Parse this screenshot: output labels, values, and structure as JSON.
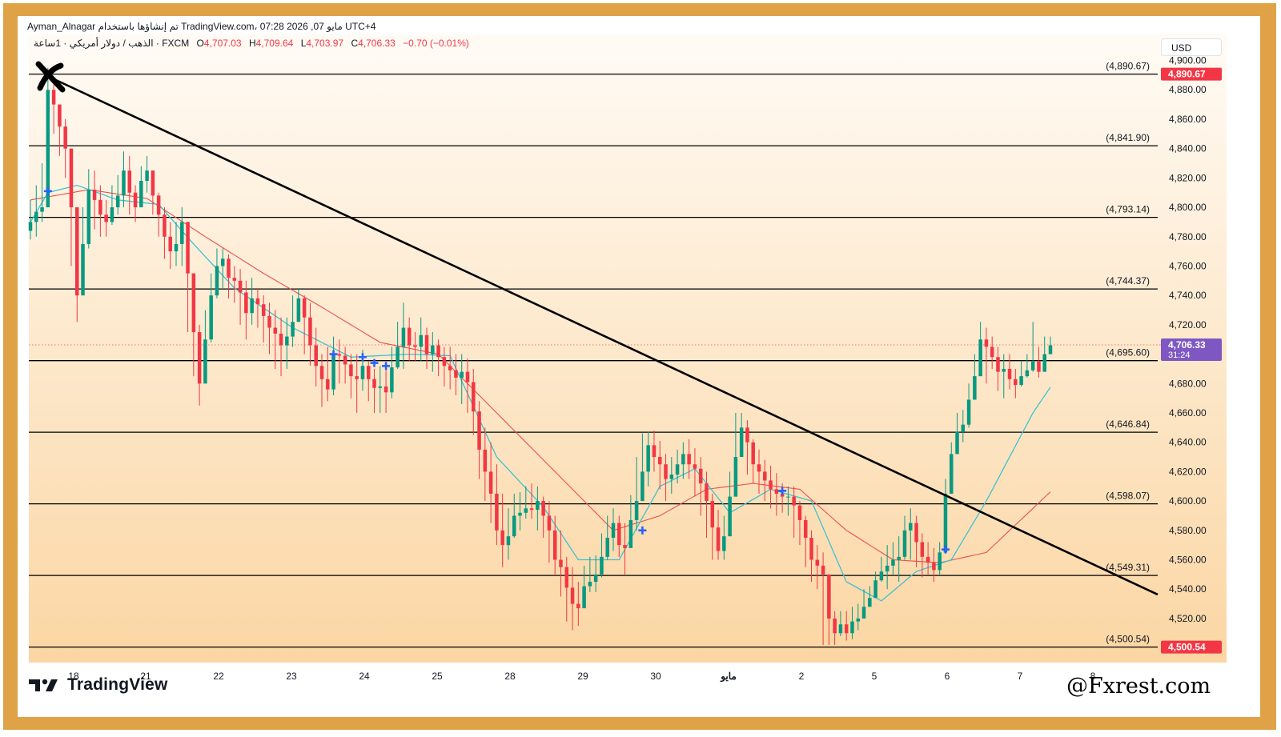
{
  "header": {
    "line1": "Ayman_Alnagar تم إنشاؤها باستخدام TradingView.com، 07:28 2026 ,07 مايو UTC+4",
    "symbol": "الذهب / دولار أمريكي · 1ساعة · FXCM",
    "open_label": "O",
    "open": "4,707.03",
    "high_label": "H",
    "high": "4,709.64",
    "low_label": "L",
    "low": "4,703.97",
    "close_label": "C",
    "close": "4,706.33",
    "change": "−0.70 (−0.01%)"
  },
  "currency_button": "USD",
  "brand": {
    "name": "TradingView",
    "watermark": "@Fxrest.com"
  },
  "colors": {
    "frame": "#e0a246",
    "bull": "#089981",
    "bear": "#f23645",
    "ema_fast": "#3fc1d1",
    "ema_slow": "#e8504f",
    "signal": "#2962ff",
    "current_price_bg": "#7e57c2",
    "level_line": "#000000"
  },
  "chart_data": {
    "type": "candlestick",
    "ylim": [
      4490,
      4915
    ],
    "y_ticks": [
      4520,
      4540,
      4560,
      4580,
      4600,
      4620,
      4640,
      4660,
      4680,
      4700,
      4720,
      4740,
      4760,
      4780,
      4800,
      4820,
      4840,
      4860,
      4880,
      4900
    ],
    "y_tick_labels": [
      "4,520.00",
      "4,540.00",
      "4,560.00",
      "4,580.00",
      "4,600.00",
      "4,620.00",
      "4,640.00",
      "4,660.00",
      "4,680.00",
      "4,700.00",
      "4,720.00",
      "4,740.00",
      "4,760.00",
      "4,780.00",
      "4,800.00",
      "4,820.00",
      "4,840.00",
      "4,860.00",
      "4,880.00",
      "4,900.00"
    ],
    "x_labels": [
      "18",
      "21",
      "22",
      "23",
      "24",
      "25",
      "28",
      "29",
      "30",
      "مايو",
      "2",
      "5",
      "6",
      "7",
      "8"
    ],
    "levels": [
      {
        "label": "(4,890.67)",
        "value": 4890.67
      },
      {
        "label": "(4,841.90)",
        "value": 4841.9
      },
      {
        "label": "(4,793.14)",
        "value": 4793.14
      },
      {
        "label": "(4,744.37)",
        "value": 4744.37
      },
      {
        "label": "(4,695.60)",
        "value": 4695.6
      },
      {
        "label": "(4,646.84)",
        "value": 4646.84
      },
      {
        "label": "(4,598.07)",
        "value": 4598.07
      },
      {
        "label": "(4,549.31)",
        "value": 4549.31
      },
      {
        "label": "(4,500.54)",
        "value": 4500.54
      }
    ],
    "price_tags": [
      {
        "text": "4,890.67",
        "value": 4890.67,
        "color": "#f23645"
      },
      {
        "text": "4,500.54",
        "value": 4500.54,
        "color": "#f23645"
      }
    ],
    "current_price": {
      "value": 4706.33,
      "text": "4,706.33",
      "countdown": "31:24"
    },
    "trendline": {
      "from": [
        1,
        4890
      ],
      "to": [
        309,
        4544
      ]
    },
    "closes": [
      4790,
      4797,
      4800,
      4880,
      4870,
      4855,
      4840,
      4800,
      4740,
      4775,
      4812,
      4805,
      4795,
      4790,
      4800,
      4808,
      4825,
      4810,
      4800,
      4818,
      4825,
      4808,
      4795,
      4780,
      4770,
      4775,
      4790,
      4755,
      4715,
      4680,
      4710,
      4740,
      4760,
      4765,
      4752,
      4750,
      4742,
      4728,
      4738,
      4734,
      4726,
      4718,
      4714,
      4706,
      4712,
      4722,
      4738,
      4725,
      4706,
      4692,
      4683,
      4676,
      4700,
      4699,
      4693,
      4685,
      4683,
      4692,
      4683,
      4677,
      4678,
      4674,
      4691,
      4705,
      4718,
      4706,
      4705,
      4713,
      4700,
      4706,
      4698,
      4692,
      4689,
      4684,
      4688,
      4681,
      4661,
      4635,
      4620,
      4605,
      4580,
      4570,
      4576,
      4590,
      4592,
      4595,
      4594,
      4600,
      4590,
      4580,
      4560,
      4555,
      4541,
      4530,
      4527,
      4542,
      4545,
      4550,
      4562,
      4575,
      4585,
      4570,
      4568,
      4587,
      4600,
      4620,
      4638,
      4630,
      4625,
      4615,
      4618,
      4625,
      4632,
      4625,
      4622,
      4612,
      4600,
      4582,
      4566,
      4576,
      4603,
      4630,
      4650,
      4640,
      4625,
      4620,
      4614,
      4608,
      4605,
      4603,
      4603,
      4597,
      4587,
      4575,
      4560,
      4556,
      4550,
      4520,
      4510,
      4516,
      4510,
      4518,
      4520,
      4528,
      4534,
      4546,
      4552,
      4556,
      4560,
      4562,
      4580,
      4585,
      4572,
      4562,
      4558,
      4553,
      4565,
      4605,
      4632,
      4647,
      4652,
      4669,
      4685,
      4710,
      4705,
      4698,
      4688,
      4690,
      4683,
      4679,
      4685,
      4689,
      4695,
      4688,
      4700,
      4706
    ],
    "highs": [
      4805,
      4815,
      4830,
      4895,
      4885,
      4870,
      4860,
      4840,
      4800,
      4800,
      4826,
      4825,
      4815,
      4805,
      4815,
      4822,
      4838,
      4835,
      4815,
      4828,
      4835,
      4825,
      4810,
      4800,
      4790,
      4790,
      4800,
      4780,
      4755,
      4720,
      4730,
      4755,
      4772,
      4772,
      4768,
      4760,
      4758,
      4750,
      4752,
      4745,
      4740,
      4735,
      4730,
      4725,
      4725,
      4740,
      4745,
      4740,
      4735,
      4718,
      4700,
      4705,
      4712,
      4710,
      4705,
      4700,
      4700,
      4703,
      4695,
      4690,
      4692,
      4690,
      4705,
      4722,
      4735,
      4725,
      4715,
      4725,
      4718,
      4715,
      4710,
      4705,
      4705,
      4700,
      4700,
      4697,
      4690,
      4668,
      4650,
      4640,
      4625,
      4605,
      4595,
      4605,
      4606,
      4610,
      4612,
      4610,
      4603,
      4600,
      4590,
      4580,
      4562,
      4555,
      4545,
      4556,
      4562,
      4563,
      4578,
      4590,
      4595,
      4590,
      4585,
      4604,
      4630,
      4646,
      4647,
      4648,
      4641,
      4632,
      4630,
      4635,
      4640,
      4642,
      4636,
      4630,
      4620,
      4605,
      4594,
      4590,
      4620,
      4660,
      4660,
      4655,
      4642,
      4635,
      4628,
      4624,
      4619,
      4612,
      4610,
      4610,
      4600,
      4590,
      4580,
      4570,
      4565,
      4550,
      4525,
      4525,
      4525,
      4528,
      4530,
      4540,
      4542,
      4552,
      4562,
      4570,
      4572,
      4576,
      4590,
      4595,
      4590,
      4578,
      4572,
      4568,
      4572,
      4615,
      4640,
      4660,
      4662,
      4680,
      4700,
      4722,
      4718,
      4712,
      4705,
      4700,
      4700,
      4690,
      4695,
      4700,
      4722,
      4705,
      4712,
      4712
    ],
    "lows": [
      4778,
      4780,
      4790,
      4800,
      4850,
      4835,
      4820,
      4760,
      4722,
      4740,
      4772,
      4785,
      4780,
      4780,
      4788,
      4795,
      4800,
      4795,
      4790,
      4805,
      4810,
      4795,
      4780,
      4765,
      4758,
      4760,
      4760,
      4715,
      4685,
      4665,
      4680,
      4708,
      4738,
      4745,
      4738,
      4735,
      4720,
      4710,
      4720,
      4718,
      4708,
      4700,
      4690,
      4685,
      4690,
      4705,
      4722,
      4700,
      4692,
      4678,
      4664,
      4668,
      4672,
      4680,
      4680,
      4670,
      4660,
      4675,
      4668,
      4660,
      4660,
      4660,
      4670,
      4690,
      4690,
      4695,
      4695,
      4695,
      4690,
      4688,
      4685,
      4678,
      4676,
      4672,
      4666,
      4660,
      4645,
      4615,
      4600,
      4585,
      4570,
      4555,
      4560,
      4575,
      4580,
      4588,
      4588,
      4580,
      4575,
      4558,
      4550,
      4535,
      4518,
      4512,
      4515,
      4530,
      4538,
      4538,
      4548,
      4560,
      4566,
      4562,
      4550,
      4568,
      4580,
      4602,
      4610,
      4620,
      4608,
      4600,
      4605,
      4612,
      4615,
      4615,
      4603,
      4590,
      4575,
      4560,
      4560,
      4560,
      4595,
      4620,
      4632,
      4618,
      4612,
      4605,
      4600,
      4595,
      4590,
      4592,
      4590,
      4575,
      4570,
      4555,
      4545,
      4540,
      4502,
      4502,
      4502,
      4508,
      4505,
      4506,
      4512,
      4522,
      4528,
      4536,
      4545,
      4540,
      4550,
      4545,
      4560,
      4560,
      4555,
      4548,
      4550,
      4545,
      4550,
      4590,
      4620,
      4635,
      4640,
      4650,
      4675,
      4690,
      4680,
      4690,
      4675,
      4670,
      4676,
      4670,
      4678,
      4684,
      4688,
      4684,
      4690,
      4700
    ],
    "ema_fast_anchors": [
      [
        0,
        4790
      ],
      [
        3,
        4810
      ],
      [
        8,
        4815
      ],
      [
        15,
        4805
      ],
      [
        22,
        4802
      ],
      [
        28,
        4775
      ],
      [
        35,
        4745
      ],
      [
        45,
        4718
      ],
      [
        55,
        4698
      ],
      [
        65,
        4700
      ],
      [
        72,
        4699
      ],
      [
        80,
        4630
      ],
      [
        88,
        4596
      ],
      [
        94,
        4560
      ],
      [
        101,
        4560
      ],
      [
        108,
        4610
      ],
      [
        114,
        4622
      ],
      [
        120,
        4592
      ],
      [
        127,
        4608
      ],
      [
        134,
        4600
      ],
      [
        140,
        4545
      ],
      [
        146,
        4532
      ],
      [
        152,
        4552
      ],
      [
        158,
        4560
      ],
      [
        164,
        4600
      ],
      [
        172,
        4660
      ],
      [
        178,
        4695
      ],
      [
        180,
        4700
      ]
    ],
    "ema_slow_anchors": [
      [
        0,
        4805
      ],
      [
        10,
        4812
      ],
      [
        20,
        4806
      ],
      [
        30,
        4780
      ],
      [
        40,
        4755
      ],
      [
        50,
        4732
      ],
      [
        60,
        4708
      ],
      [
        70,
        4700
      ],
      [
        80,
        4660
      ],
      [
        90,
        4620
      ],
      [
        100,
        4580
      ],
      [
        108,
        4590
      ],
      [
        116,
        4608
      ],
      [
        124,
        4612
      ],
      [
        132,
        4608
      ],
      [
        140,
        4580
      ],
      [
        148,
        4560
      ],
      [
        156,
        4558
      ],
      [
        164,
        4565
      ],
      [
        172,
        4595
      ],
      [
        180,
        4625
      ]
    ],
    "signals": [
      {
        "x": 3,
        "y": 4811
      },
      {
        "x": 52,
        "y": 4700
      },
      {
        "x": 57,
        "y": 4698
      },
      {
        "x": 59,
        "y": 4694
      },
      {
        "x": 61,
        "y": 4692
      },
      {
        "x": 105,
        "y": 4580
      },
      {
        "x": 129,
        "y": 4607
      },
      {
        "x": 157,
        "y": 4567
      }
    ]
  }
}
